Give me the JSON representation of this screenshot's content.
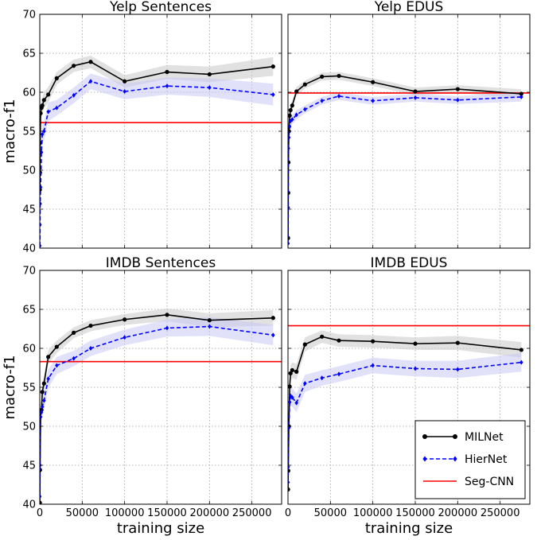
{
  "chart_data": [
    {
      "type": "line",
      "title": "Yelp Sentences",
      "xlabel": "",
      "ylabel": "macro-f1",
      "xlim": [
        0,
        285000
      ],
      "ylim": [
        40,
        70
      ],
      "xticks": [],
      "yticks": [
        "40",
        "45",
        "50",
        "55",
        "60",
        "65",
        "70"
      ],
      "grid": true,
      "series": [
        {
          "name": "MILNet",
          "color": "#000000",
          "style": "solid-circle",
          "x": [
            100,
            300,
            500,
            1000,
            2000,
            3000,
            5000,
            10000,
            20000,
            40000,
            60000,
            100000,
            150000,
            200000,
            275000
          ],
          "y": [
            47.5,
            49.7,
            53.5,
            57.3,
            58.0,
            58.3,
            59.0,
            59.7,
            61.8,
            63.4,
            63.9,
            61.4,
            62.6,
            62.3,
            63.3
          ],
          "band": [
            1.2,
            1.2,
            1.2,
            1.0,
            1.0,
            1.0,
            1.0,
            1.0,
            0.8,
            0.8,
            0.8,
            0.8,
            0.9,
            1.0,
            1.2
          ]
        },
        {
          "name": "HierNet",
          "color": "#0000ff",
          "style": "dashed-diamond",
          "x": [
            100,
            300,
            500,
            1000,
            2000,
            3000,
            5000,
            10000,
            20000,
            40000,
            60000,
            100000,
            150000,
            200000,
            275000
          ],
          "y": [
            40.3,
            43.0,
            45.7,
            47.8,
            52.3,
            54.6,
            55.0,
            57.5,
            58.0,
            59.6,
            61.4,
            60.1,
            60.8,
            60.6,
            59.7
          ],
          "band": [
            1.5,
            1.5,
            1.5,
            1.3,
            1.2,
            1.2,
            1.2,
            1.2,
            1.0,
            1.0,
            1.0,
            1.0,
            1.1,
            1.2,
            1.4
          ]
        },
        {
          "name": "Seg-CNN",
          "color": "#ff0000",
          "style": "hline",
          "y": 56.1
        }
      ]
    },
    {
      "type": "line",
      "title": "Yelp EDUS",
      "xlabel": "",
      "ylabel": "",
      "xlim": [
        0,
        285000
      ],
      "ylim": [
        40,
        70
      ],
      "xticks": [],
      "yticks": [],
      "grid": true,
      "series": [
        {
          "name": "MILNet",
          "color": "#000000",
          "style": "solid-circle",
          "x": [
            100,
            300,
            500,
            1000,
            2000,
            3000,
            5000,
            10000,
            20000,
            40000,
            60000,
            100000,
            150000,
            200000,
            275000
          ],
          "y": [
            41.3,
            47.1,
            51.0,
            55.0,
            57.0,
            57.7,
            58.3,
            60.1,
            61.0,
            62.0,
            62.1,
            61.3,
            60.1,
            60.4,
            59.8
          ],
          "band": [
            1.0,
            1.0,
            1.0,
            0.8,
            0.7,
            0.7,
            0.6,
            0.6,
            0.5,
            0.5,
            0.5,
            0.5,
            0.5,
            0.5,
            0.6
          ]
        },
        {
          "name": "HierNet",
          "color": "#0000ff",
          "style": "dashed-diamond",
          "x": [
            100,
            300,
            500,
            1000,
            2000,
            3000,
            5000,
            10000,
            20000,
            40000,
            60000,
            100000,
            150000,
            200000,
            275000
          ],
          "y": [
            40.6,
            45.2,
            52.8,
            54.2,
            55.6,
            56.3,
            56.5,
            57.1,
            57.8,
            58.9,
            59.5,
            58.9,
            59.3,
            59.0,
            59.4
          ],
          "band": [
            1.0,
            1.0,
            1.0,
            0.8,
            0.7,
            0.7,
            0.6,
            0.6,
            0.5,
            0.5,
            0.5,
            0.5,
            0.5,
            0.5,
            0.6
          ]
        },
        {
          "name": "Seg-CNN",
          "color": "#ff0000",
          "style": "hline",
          "y": 59.9
        }
      ]
    },
    {
      "type": "line",
      "title": "IMDB Sentences",
      "xlabel": "training size",
      "ylabel": "macro-f1",
      "xlim": [
        0,
        285000
      ],
      "ylim": [
        40,
        70
      ],
      "xticks": [
        "0",
        "50000",
        "100000",
        "150000",
        "200000",
        "250000"
      ],
      "yticks": [
        "40",
        "45",
        "50",
        "55",
        "60",
        "65",
        "70"
      ],
      "grid": true,
      "series": [
        {
          "name": "MILNet",
          "color": "#000000",
          "style": "solid-circle",
          "x": [
            100,
            300,
            1000,
            2000,
            3000,
            5000,
            10000,
            20000,
            40000,
            60000,
            100000,
            150000,
            200000,
            275000
          ],
          "y": [
            40.2,
            44.4,
            52.0,
            52.1,
            54.4,
            55.5,
            58.9,
            60.2,
            62.0,
            62.9,
            63.7,
            64.3,
            63.6,
            63.9
          ],
          "band": [
            1.2,
            1.2,
            1.0,
            1.0,
            1.0,
            1.0,
            0.9,
            0.8,
            0.7,
            0.7,
            0.7,
            0.8,
            0.9,
            1.0
          ]
        },
        {
          "name": "HierNet",
          "color": "#0000ff",
          "style": "dashed-diamond",
          "x": [
            100,
            300,
            1000,
            2000,
            3000,
            5000,
            10000,
            20000,
            40000,
            60000,
            100000,
            150000,
            200000,
            275000
          ],
          "y": [
            41.0,
            45.0,
            51.2,
            51.8,
            52.5,
            53.3,
            56.1,
            57.8,
            58.7,
            60.0,
            61.4,
            62.6,
            62.8,
            61.7
          ],
          "band": [
            1.5,
            1.5,
            1.3,
            1.3,
            1.2,
            1.2,
            1.2,
            1.1,
            1.0,
            1.0,
            1.0,
            1.1,
            1.2,
            1.3
          ]
        },
        {
          "name": "Seg-CNN",
          "color": "#ff0000",
          "style": "hline",
          "y": 58.3
        }
      ]
    },
    {
      "type": "line",
      "title": "IMDB EDUS",
      "xlabel": "training size",
      "ylabel": "",
      "xlim": [
        0,
        285000
      ],
      "ylim": [
        40,
        70
      ],
      "xticks": [
        "0",
        "50000",
        "100000",
        "150000",
        "200000",
        "250000"
      ],
      "yticks": [],
      "grid": true,
      "series": [
        {
          "name": "MILNet",
          "color": "#000000",
          "style": "solid-circle",
          "x": [
            100,
            300,
            1000,
            2000,
            3000,
            5000,
            10000,
            20000,
            40000,
            60000,
            100000,
            150000,
            200000,
            275000
          ],
          "y": [
            41.9,
            44.3,
            50.0,
            55.1,
            56.8,
            57.2,
            57.0,
            60.5,
            61.5,
            61.0,
            60.9,
            60.6,
            60.7,
            59.8
          ],
          "band": [
            1.2,
            1.2,
            1.0,
            1.0,
            1.0,
            1.0,
            1.0,
            0.9,
            0.8,
            0.8,
            0.8,
            0.8,
            0.9,
            1.0
          ]
        },
        {
          "name": "HierNet",
          "color": "#0000ff",
          "style": "dashed-diamond",
          "x": [
            100,
            300,
            1000,
            2000,
            3000,
            5000,
            10000,
            20000,
            40000,
            60000,
            100000,
            150000,
            200000,
            275000
          ],
          "y": [
            42.8,
            44.8,
            49.8,
            53.1,
            53.9,
            53.7,
            53.0,
            55.5,
            56.2,
            56.7,
            57.8,
            57.4,
            57.3,
            58.2
          ],
          "band": [
            1.5,
            1.5,
            1.3,
            1.2,
            1.2,
            1.2,
            1.2,
            1.1,
            1.0,
            1.0,
            1.0,
            1.0,
            1.1,
            1.2
          ]
        },
        {
          "name": "Seg-CNN",
          "color": "#ff0000",
          "style": "hline",
          "y": 62.9
        }
      ]
    }
  ],
  "legend": {
    "placement": "lower-right",
    "entries": [
      "MILNet",
      "HierNet",
      "Seg-CNN"
    ]
  }
}
